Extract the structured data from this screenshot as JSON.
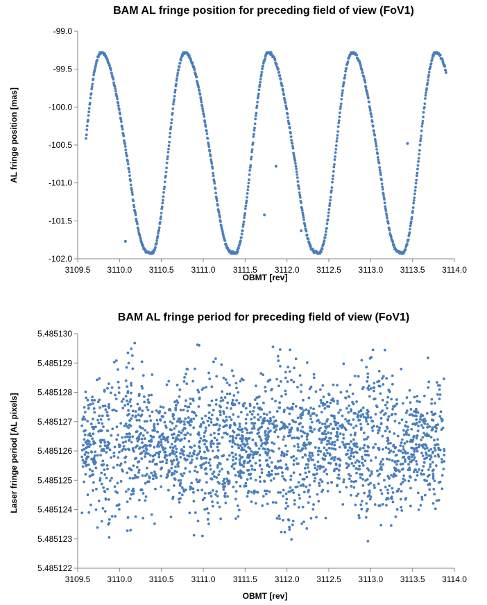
{
  "chart_data": [
    {
      "type": "scatter",
      "title": "BAM AL fringe position for preceding field of view (FoV1)",
      "xlabel": "OBMT [rev]",
      "ylabel": "AL fringe position [mas]",
      "xlim": [
        3109.5,
        3114.0
      ],
      "ylim": [
        -102.0,
        -99.0
      ],
      "x_ticks": [
        "3109.5",
        "3110.0",
        "3110.5",
        "3111.0",
        "3111.5",
        "3112.0",
        "3112.5",
        "3113.0",
        "3113.5",
        "3114.0"
      ],
      "y_ticks": [
        "-99.0",
        "-99.5",
        "-100.0",
        "-100.5",
        "-101.0",
        "-101.5",
        "-102.0"
      ],
      "grid": false,
      "legend": "none",
      "marker_color": "#4a7ebb",
      "model": {
        "x_start": 3109.6,
        "x_end": 3113.9,
        "period": 1.0,
        "max_value": -99.28,
        "min_value": -101.93,
        "first_max_x": 3109.78,
        "min_x": [
          3110.38,
          3111.38,
          3112.38,
          3113.38
        ],
        "max_x": [
          3109.78,
          3110.78,
          3111.78,
          3112.78,
          3113.78
        ]
      },
      "outliers": [
        {
          "x": 3110.07,
          "y": -101.77
        },
        {
          "x": 3111.73,
          "y": -101.42
        },
        {
          "x": 3111.87,
          "y": -100.78
        },
        {
          "x": 3112.17,
          "y": -101.63
        },
        {
          "x": 3113.44,
          "y": -100.48
        }
      ]
    },
    {
      "type": "scatter",
      "title": "BAM AL fringe period for preceding field of view (FoV1)",
      "xlabel": "OBMT [rev]",
      "ylabel": "Laser fringe period [AL pixels]",
      "xlim": [
        3109.5,
        3114.0
      ],
      "ylim": [
        5.485122,
        5.48513
      ],
      "x_ticks": [
        "3109.5",
        "3110.0",
        "3110.5",
        "3111.0",
        "3111.5",
        "3112.0",
        "3112.5",
        "3113.0",
        "3113.5",
        "3114.0"
      ],
      "y_ticks": [
        "5.485130",
        "5.485129",
        "5.485128",
        "5.485127",
        "5.485126",
        "5.485125",
        "5.485124",
        "5.485123",
        "5.485122"
      ],
      "grid": false,
      "legend": "none",
      "marker_color": "#4a7ebb",
      "distribution": {
        "x_start": 3109.55,
        "x_end": 3113.88,
        "mean": 5.4851262,
        "spread": 1.2e-06,
        "y_min": 5.4851228,
        "y_max": 5.4851297
      }
    }
  ]
}
